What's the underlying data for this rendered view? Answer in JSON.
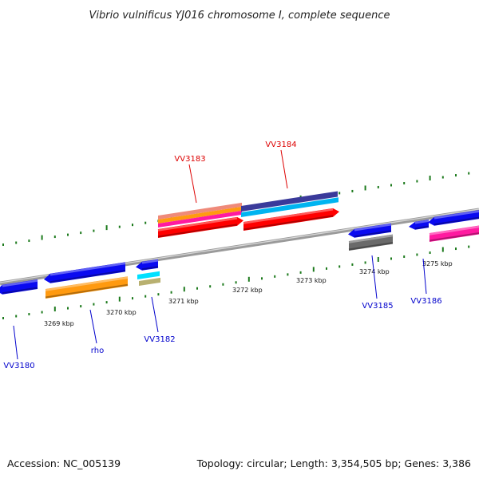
{
  "title": "Vibrio vulnificus YJ016 chromosome I, complete sequence",
  "footer": {
    "accession": "Accession: NC_005139",
    "topology": "Topology: circular; Length: 3,354,505 bp; Genes: 3,386"
  },
  "colors": {
    "backbone": "#8a8a8a",
    "tick": "#1c7a1c",
    "label_forward": "#dd0000",
    "label_reverse": "#0000cc"
  },
  "scale_labels": [
    "3269 kbp",
    "3270 kbp",
    "3271 kbp",
    "3272 kbp",
    "3273 kbp",
    "3274 kbp",
    "3275 kbp"
  ],
  "gene_labels": [
    {
      "text": "VV3183",
      "strand": "forward"
    },
    {
      "text": "VV3184",
      "strand": "forward"
    },
    {
      "text": "VV3180",
      "strand": "reverse"
    },
    {
      "text": "rho",
      "strand": "reverse"
    },
    {
      "text": "VV3182",
      "strand": "reverse"
    },
    {
      "text": "VV3185",
      "strand": "reverse"
    },
    {
      "text": "VV3186",
      "strand": "reverse"
    }
  ],
  "features": [
    {
      "name": "VV3180 gene",
      "color": "#0a0af0"
    },
    {
      "name": "rho gene",
      "color": "#0a0af0"
    },
    {
      "name": "rho feature",
      "color": "#ff9a10"
    },
    {
      "name": "VV3182 gene",
      "color": "#0a0af0"
    },
    {
      "name": "VV3182 feature cyan",
      "color": "#00e0ff"
    },
    {
      "name": "VV3182 feature olive",
      "color": "#b8b070"
    },
    {
      "name": "VV3183 feature salmon",
      "color": "#ef8a7a"
    },
    {
      "name": "VV3183 feature orange",
      "color": "#ff9a10"
    },
    {
      "name": "VV3183 feature magenta",
      "color": "#ff1aa0"
    },
    {
      "name": "VV3183 gene",
      "color": "#ff0000"
    },
    {
      "name": "VV3184 feature purple",
      "color": "#3a3a9a"
    },
    {
      "name": "VV3184 feature skyblue",
      "color": "#00b4f0"
    },
    {
      "name": "VV3184 gene",
      "color": "#ff0000"
    },
    {
      "name": "VV3185 gene",
      "color": "#0a0af0"
    },
    {
      "name": "VV3185 feature gray",
      "color": "#6a6a6a"
    },
    {
      "name": "VV3186 gene small",
      "color": "#0a0af0"
    },
    {
      "name": "VV3186 gene",
      "color": "#0a0af0"
    },
    {
      "name": "VV3186 feature pink",
      "color": "#ff1aa0"
    }
  ]
}
